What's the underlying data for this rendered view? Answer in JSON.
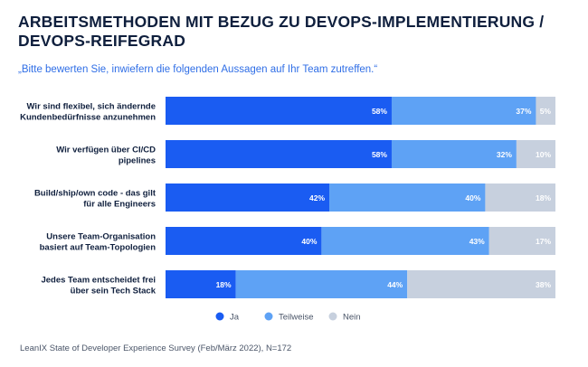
{
  "title": "ARBEITSMETHODEN MIT BEZUG ZU DEVOPS-IMPLEMENTIERUNG / DEVOPS-REIFEGRAD",
  "subtitle": "„Bitte bewerten Sie, inwiefern die folgenden Aussagen auf Ihr Team zutreffen.“",
  "source": "LeanIX State of Developer Experience Survey (Feb/März 2022), N=172",
  "colors": {
    "ja": "#1a5cf2",
    "teilweise": "#5ea2f5",
    "nein": "#c7d0de",
    "label_text": "#0f1f3d"
  },
  "chart_data": {
    "type": "bar",
    "orientation": "horizontal",
    "stacked": true,
    "title": "ARBEITSMETHODEN MIT BEZUG ZU DEVOPS-IMPLEMENTIERUNG / DEVOPS-REIFEGRAD",
    "xlim": [
      0,
      100
    ],
    "unit": "%",
    "legend_position": "bottom",
    "categories": [
      [
        "Wir sind flexibel, sich ändernde",
        "Kundenbedürfnisse anzunehmen"
      ],
      [
        "Wir verfügen über CI/CD",
        "pipelines"
      ],
      [
        "Build/ship/own code - das gilt",
        "für alle Engineers"
      ],
      [
        "Unsere Team-Organisation",
        "basiert auf Team-Topologien"
      ],
      [
        "Jedes Team entscheidet frei",
        "über sein Tech Stack"
      ]
    ],
    "series": [
      {
        "name": "Ja",
        "color_key": "ja",
        "values": [
          58,
          58,
          42,
          40,
          18
        ]
      },
      {
        "name": "Teilweise",
        "color_key": "teilweise",
        "values": [
          37,
          32,
          40,
          43,
          44
        ]
      },
      {
        "name": "Nein",
        "color_key": "nein",
        "values": [
          5,
          10,
          18,
          17,
          38
        ]
      }
    ]
  }
}
